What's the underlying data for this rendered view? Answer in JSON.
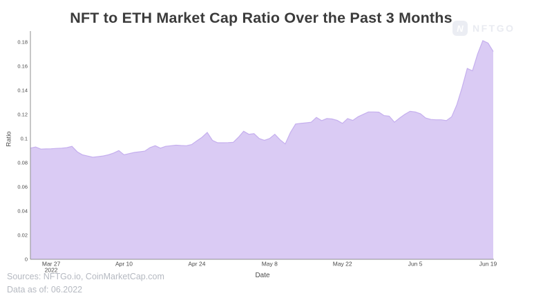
{
  "header": {
    "title": "NFT to ETH Market Cap Ratio Over the Past 3 Months"
  },
  "logo": {
    "text": "NFTGO",
    "badge_glyph": "N"
  },
  "chart_data": {
    "type": "area",
    "title": "NFT to ETH Market Cap Ratio Over the Past 3 Months",
    "xlabel": "Date",
    "ylabel": "Ratio",
    "grid": false,
    "legend": "none",
    "ylim": [
      0,
      0.19
    ],
    "yticks": [
      {
        "v": 0.18,
        "label": "0.18"
      },
      {
        "v": 0.16,
        "label": "0.16"
      },
      {
        "v": 0.14,
        "label": "0.14"
      },
      {
        "v": 0.12,
        "label": "0.12"
      },
      {
        "v": 0.1,
        "label": "0.1"
      },
      {
        "v": 0.08,
        "label": "0.08"
      },
      {
        "v": 0.06,
        "label": "0.06"
      },
      {
        "v": 0.04,
        "label": "0.04"
      },
      {
        "v": 0.02,
        "label": "0.02"
      },
      {
        "v": 0.0,
        "label": "0"
      }
    ],
    "xticks": [
      {
        "index": 4,
        "label": "Mar 27",
        "sublabel": "2022"
      },
      {
        "index": 18,
        "label": "Apr 10",
        "sublabel": ""
      },
      {
        "index": 32,
        "label": "Apr 24",
        "sublabel": ""
      },
      {
        "index": 46,
        "label": "May 8",
        "sublabel": ""
      },
      {
        "index": 60,
        "label": "May 22",
        "sublabel": ""
      },
      {
        "index": 74,
        "label": "Jun 5",
        "sublabel": ""
      },
      {
        "index": 88,
        "label": "Jun 19",
        "sublabel": ""
      }
    ],
    "dates": [
      "Mar 23",
      "Mar 24",
      "Mar 25",
      "Mar 26",
      "Mar 27",
      "Mar 28",
      "Mar 29",
      "Mar 30",
      "Mar 31",
      "Apr 1",
      "Apr 2",
      "Apr 3",
      "Apr 4",
      "Apr 5",
      "Apr 6",
      "Apr 7",
      "Apr 8",
      "Apr 9",
      "Apr 10",
      "Apr 11",
      "Apr 12",
      "Apr 13",
      "Apr 14",
      "Apr 15",
      "Apr 16",
      "Apr 17",
      "Apr 18",
      "Apr 19",
      "Apr 20",
      "Apr 21",
      "Apr 22",
      "Apr 23",
      "Apr 24",
      "Apr 25",
      "Apr 26",
      "Apr 27",
      "Apr 28",
      "Apr 29",
      "Apr 30",
      "May 1",
      "May 2",
      "May 3",
      "May 4",
      "May 5",
      "May 6",
      "May 7",
      "May 8",
      "May 9",
      "May 10",
      "May 11",
      "May 12",
      "May 13",
      "May 14",
      "May 15",
      "May 16",
      "May 17",
      "May 18",
      "May 19",
      "May 20",
      "May 21",
      "May 22",
      "May 23",
      "May 24",
      "May 25",
      "May 26",
      "May 27",
      "May 28",
      "May 29",
      "May 30",
      "May 31",
      "Jun 1",
      "Jun 2",
      "Jun 3",
      "Jun 4",
      "Jun 5",
      "Jun 6",
      "Jun 7",
      "Jun 8",
      "Jun 9",
      "Jun 10",
      "Jun 11",
      "Jun 12",
      "Jun 13",
      "Jun 14",
      "Jun 15",
      "Jun 16",
      "Jun 17",
      "Jun 18",
      "Jun 19",
      "Jun 20"
    ],
    "values": [
      0.092,
      0.093,
      0.0912,
      0.0914,
      0.0915,
      0.0918,
      0.092,
      0.0924,
      0.0935,
      0.089,
      0.0865,
      0.0855,
      0.0845,
      0.085,
      0.0856,
      0.0865,
      0.088,
      0.09,
      0.0865,
      0.0875,
      0.0885,
      0.089,
      0.0896,
      0.0925,
      0.094,
      0.092,
      0.0935,
      0.094,
      0.0945,
      0.0942,
      0.094,
      0.095,
      0.098,
      0.101,
      0.105,
      0.0985,
      0.0965,
      0.0965,
      0.0966,
      0.0968,
      0.101,
      0.106,
      0.1035,
      0.104,
      0.1,
      0.0985,
      0.1,
      0.1035,
      0.099,
      0.0955,
      0.105,
      0.112,
      0.1125,
      0.113,
      0.1135,
      0.1175,
      0.1148,
      0.1165,
      0.1162,
      0.115,
      0.1125,
      0.1165,
      0.115,
      0.118,
      0.12,
      0.122,
      0.122,
      0.1218,
      0.119,
      0.1185,
      0.1135,
      0.117,
      0.12,
      0.1225,
      0.122,
      0.1205,
      0.117,
      0.1158,
      0.1155,
      0.1155,
      0.1148,
      0.118,
      0.128,
      0.142,
      0.158,
      0.156,
      0.17,
      0.181,
      0.179,
      0.172
    ],
    "colors": {
      "fill": "#dacbf4",
      "stroke": "#c5afee",
      "axis": "#8f8f8f",
      "tick_text": "#4a4a4a",
      "title_text": "#3b3b3b",
      "footer_text": "#b5b9c1",
      "logo": "#e9ebf1"
    }
  },
  "footer": {
    "sources": "Sources: NFTGo.io, CoinMarketCap.com",
    "data_as_of": "Data as of: 06.2022"
  }
}
